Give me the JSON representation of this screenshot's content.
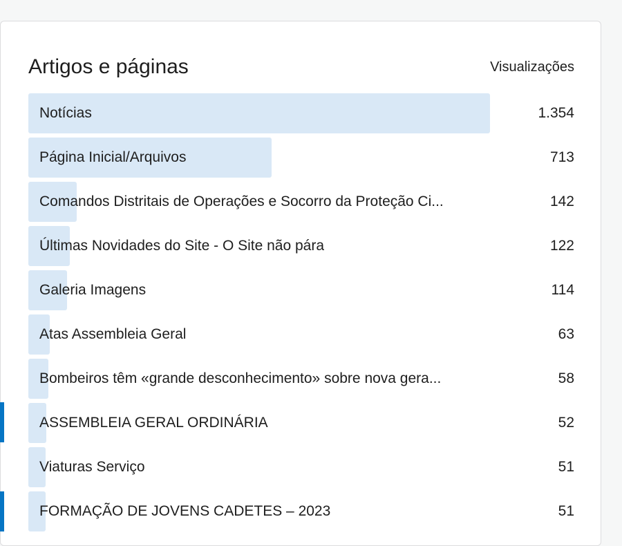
{
  "card": {
    "title": "Artigos e páginas",
    "column_label": "Visualizações"
  },
  "colors": {
    "bar": "#d9e8f6",
    "marker": "#0675c4"
  },
  "rows": [
    {
      "label": "Notícias",
      "value": "1.354",
      "views": 1354
    },
    {
      "label": "Página Inicial/Arquivos",
      "value": "713",
      "views": 713
    },
    {
      "label": "Comandos Distritais de Operações e Socorro da Proteção Ci...",
      "value": "142",
      "views": 142
    },
    {
      "label": "Últimas Novidades do Site - O Site não pára",
      "value": "122",
      "views": 122
    },
    {
      "label": "Galeria Imagens",
      "value": "114",
      "views": 114
    },
    {
      "label": "Atas Assembleia Geral",
      "value": "63",
      "views": 63
    },
    {
      "label": "Bombeiros têm «grande desconhecimento» sobre nova gera...",
      "value": "58",
      "views": 58
    },
    {
      "label": "ASSEMBLEIA GERAL ORDINÁRIA",
      "value": "52",
      "views": 52
    },
    {
      "label": "Viaturas Serviço",
      "value": "51",
      "views": 51
    },
    {
      "label": "FORMAÇÃO DE JOVENS CADETES – 2023",
      "value": "51",
      "views": 51
    }
  ]
}
